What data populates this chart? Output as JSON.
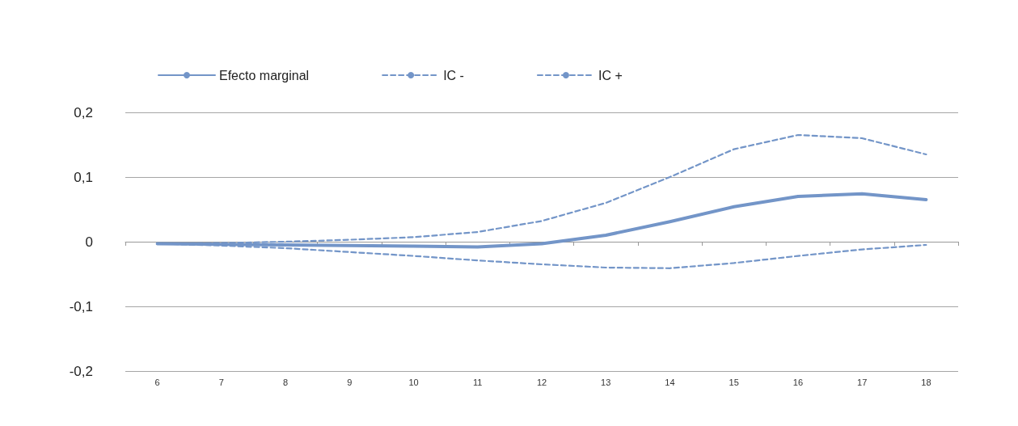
{
  "chart_data": {
    "type": "line",
    "categories": [
      "6",
      "7",
      "8",
      "9",
      "10",
      "11",
      "12",
      "13",
      "14",
      "15",
      "16",
      "17",
      "18"
    ],
    "series": [
      {
        "name": "Efecto marginal",
        "color": "#7395c8",
        "line_style": "solid",
        "values": [
          -0.003,
          -0.004,
          -0.005,
          -0.006,
          -0.007,
          -0.008,
          -0.003,
          0.01,
          0.031,
          0.054,
          0.07,
          0.074,
          0.065
        ]
      },
      {
        "name": "IC -",
        "color": "#7395c8",
        "line_style": "dashed",
        "values": [
          -0.003,
          -0.006,
          -0.01,
          -0.016,
          -0.022,
          -0.029,
          -0.035,
          -0.04,
          -0.041,
          -0.033,
          -0.022,
          -0.012,
          -0.005
        ]
      },
      {
        "name": "IC +",
        "color": "#7395c8",
        "line_style": "dashed",
        "values": [
          -0.003,
          -0.002,
          0,
          0.003,
          0.007,
          0.015,
          0.032,
          0.06,
          0.1,
          0.143,
          0.165,
          0.16,
          0.135
        ]
      }
    ],
    "ylim": [
      -0.2,
      0.2
    ],
    "yticks": [
      {
        "value": -0.2,
        "label": "-0,2"
      },
      {
        "value": -0.1,
        "label": "-0,1"
      },
      0,
      {
        "value": 0.1,
        "label": "0,1"
      },
      {
        "value": 0.2,
        "label": "0,2"
      }
    ],
    "grid": "y",
    "legend": "top left",
    "marker": "none"
  }
}
